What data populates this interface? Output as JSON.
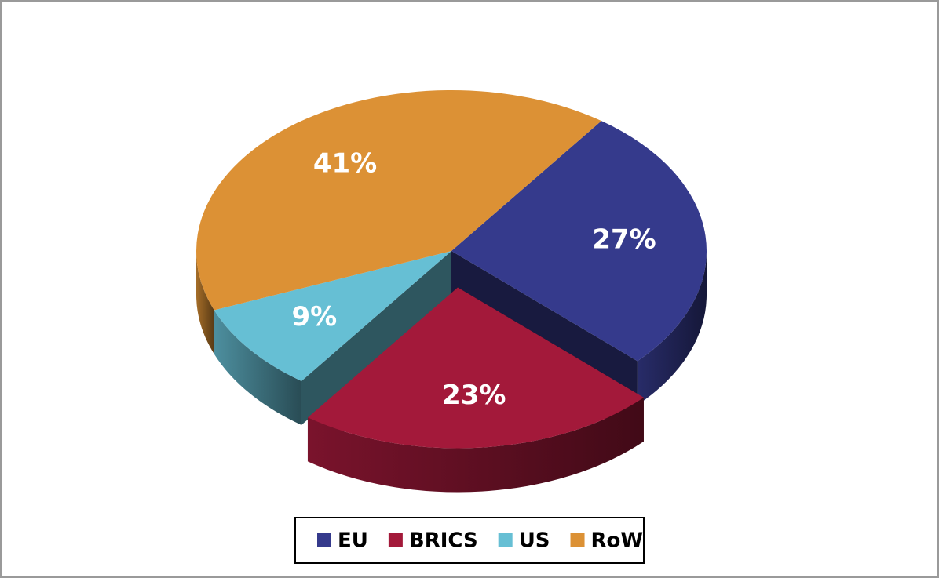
{
  "chart_data": {
    "type": "pie",
    "categories": [
      "EU",
      "BRICS",
      "US",
      "RoW"
    ],
    "values": [
      27,
      23,
      9,
      41
    ],
    "value_labels": [
      "27%",
      "23%",
      "9%",
      "41%"
    ],
    "colors": [
      "#353a8c",
      "#a3193a",
      "#66bfd4",
      "#dc9135"
    ],
    "exploded": "BRICS",
    "legend": "bottom"
  }
}
